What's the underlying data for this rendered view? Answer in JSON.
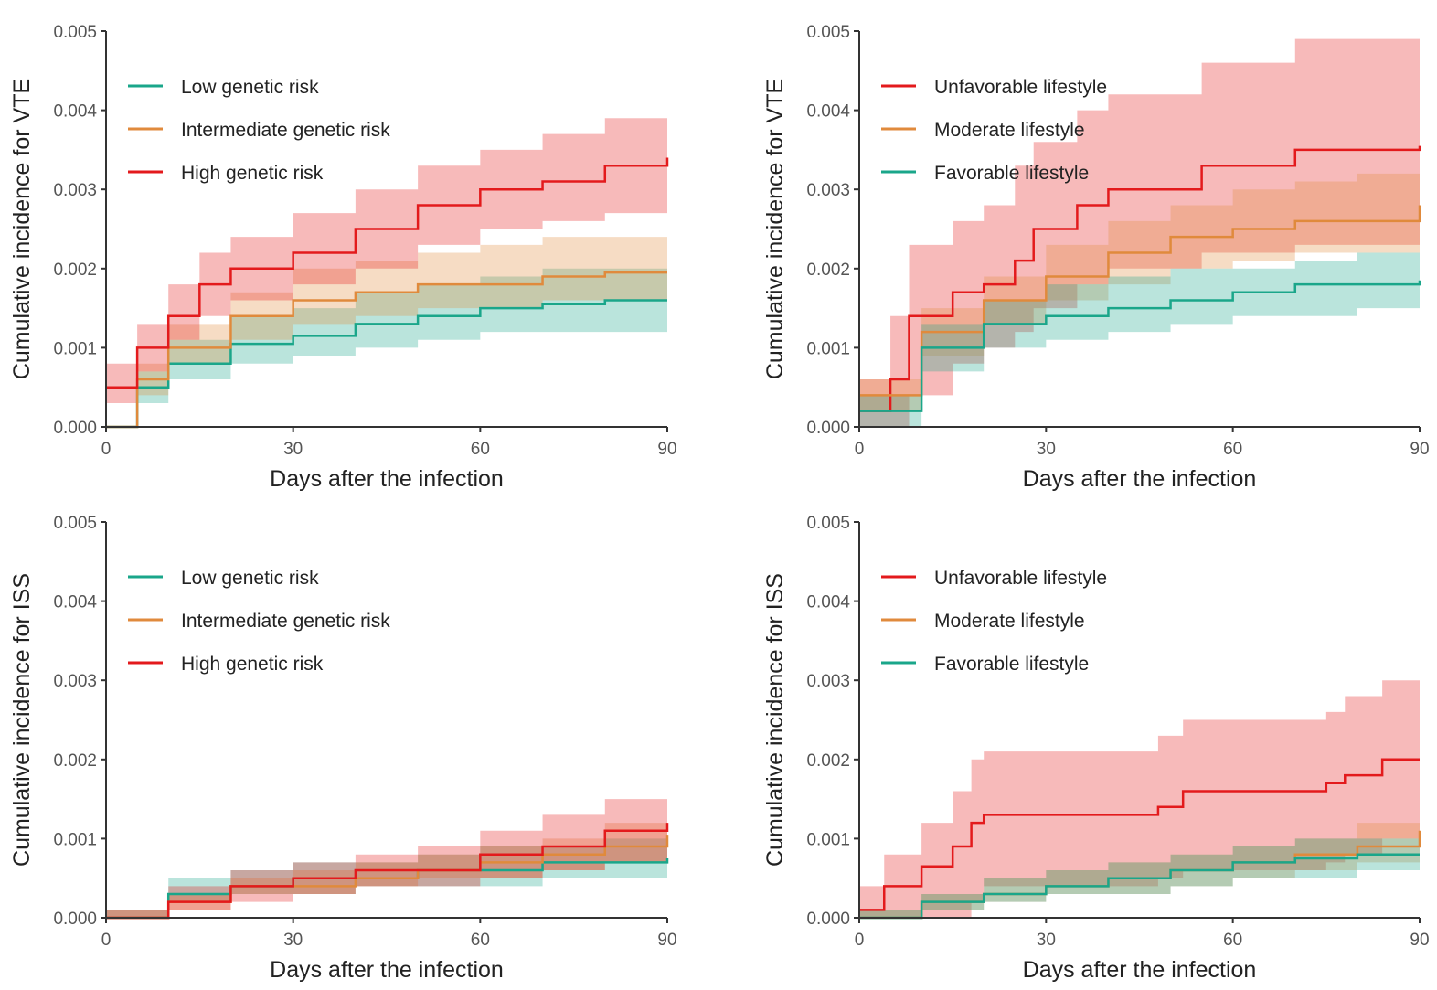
{
  "chart_data": [
    {
      "type": "line",
      "xlabel": "Days after the infection",
      "ylabel": "Cumulative incidence for VTE",
      "xlim": [
        0,
        90
      ],
      "ylim": [
        0,
        0.005
      ],
      "xticks": [
        "0",
        "30",
        "60",
        "90"
      ],
      "yticks": [
        "0.000",
        "0.001",
        "0.002",
        "0.003",
        "0.004",
        "0.005"
      ],
      "legend_position": "top-left",
      "grid": false,
      "series": [
        {
          "name": "Low genetic risk",
          "color": "#1aa68a",
          "points": [
            [
              0,
              0,
              0,
              0
            ],
            [
              5,
              0.0005,
              0.0003,
              0.0007
            ],
            [
              10,
              0.0008,
              0.0006,
              0.0011
            ],
            [
              20,
              0.00105,
              0.0008,
              0.0014
            ],
            [
              30,
              0.00115,
              0.0009,
              0.0015
            ],
            [
              40,
              0.0013,
              0.001,
              0.0017
            ],
            [
              50,
              0.0014,
              0.0011,
              0.0018
            ],
            [
              60,
              0.0015,
              0.0012,
              0.0019
            ],
            [
              70,
              0.00155,
              0.0012,
              0.002
            ],
            [
              80,
              0.0016,
              0.0012,
              0.002
            ],
            [
              90,
              0.0016,
              0.0012,
              0.002
            ]
          ]
        },
        {
          "name": "Intermediate genetic risk",
          "color": "#e08a3c",
          "points": [
            [
              0,
              0,
              0,
              0
            ],
            [
              5,
              0.0006,
              0.0004,
              0.0008
            ],
            [
              10,
              0.001,
              0.0008,
              0.0013
            ],
            [
              20,
              0.0014,
              0.0011,
              0.0017
            ],
            [
              30,
              0.0016,
              0.0013,
              0.002
            ],
            [
              40,
              0.0017,
              0.0014,
              0.0021
            ],
            [
              50,
              0.0018,
              0.0015,
              0.0022
            ],
            [
              60,
              0.0018,
              0.0015,
              0.0023
            ],
            [
              70,
              0.0019,
              0.0016,
              0.0024
            ],
            [
              80,
              0.00195,
              0.0016,
              0.0024
            ],
            [
              90,
              0.00195,
              0.0016,
              0.0024
            ]
          ]
        },
        {
          "name": "High genetic risk",
          "color": "#e31a1c",
          "points": [
            [
              0,
              0.0005,
              0.0003,
              0.0008
            ],
            [
              5,
              0.001,
              0.0007,
              0.0013
            ],
            [
              10,
              0.0014,
              0.0011,
              0.0018
            ],
            [
              15,
              0.0018,
              0.0014,
              0.0022
            ],
            [
              20,
              0.002,
              0.0016,
              0.0024
            ],
            [
              30,
              0.0022,
              0.0018,
              0.0027
            ],
            [
              40,
              0.0025,
              0.002,
              0.003
            ],
            [
              50,
              0.0028,
              0.0023,
              0.0033
            ],
            [
              60,
              0.003,
              0.0025,
              0.0035
            ],
            [
              70,
              0.0031,
              0.0026,
              0.0037
            ],
            [
              80,
              0.0033,
              0.0027,
              0.0039
            ],
            [
              90,
              0.0034,
              0.0028,
              0.004
            ]
          ]
        }
      ]
    },
    {
      "type": "line",
      "xlabel": "Days after the infection",
      "ylabel": "Cumulative incidence for VTE",
      "xlim": [
        0,
        90
      ],
      "ylim": [
        0,
        0.005
      ],
      "xticks": [
        "0",
        "30",
        "60",
        "90"
      ],
      "yticks": [
        "0.000",
        "0.001",
        "0.002",
        "0.003",
        "0.004",
        "0.005"
      ],
      "legend_position": "top-left",
      "grid": false,
      "series": [
        {
          "name": "Unfavorable lifestyle",
          "color": "#e31a1c",
          "points": [
            [
              0,
              0.0002,
              0,
              0.0006
            ],
            [
              5,
              0.0006,
              0,
              0.0014
            ],
            [
              8,
              0.0014,
              0.0004,
              0.0023
            ],
            [
              15,
              0.0017,
              0.0008,
              0.0026
            ],
            [
              20,
              0.0018,
              0.001,
              0.0028
            ],
            [
              25,
              0.0021,
              0.0012,
              0.0033
            ],
            [
              28,
              0.0025,
              0.0015,
              0.0036
            ],
            [
              35,
              0.0028,
              0.0018,
              0.004
            ],
            [
              40,
              0.003,
              0.002,
              0.0042
            ],
            [
              55,
              0.0033,
              0.0022,
              0.0046
            ],
            [
              70,
              0.0035,
              0.0023,
              0.0049
            ],
            [
              90,
              0.00355,
              0.0024,
              0.0049
            ]
          ]
        },
        {
          "name": "Moderate lifestyle",
          "color": "#e08a3c",
          "points": [
            [
              0,
              0.0004,
              0.0002,
              0.0006
            ],
            [
              10,
              0.0012,
              0.0009,
              0.0015
            ],
            [
              20,
              0.0016,
              0.0013,
              0.0019
            ],
            [
              30,
              0.0019,
              0.0016,
              0.0023
            ],
            [
              40,
              0.0022,
              0.0018,
              0.0026
            ],
            [
              50,
              0.0024,
              0.002,
              0.0028
            ],
            [
              60,
              0.0025,
              0.0021,
              0.003
            ],
            [
              70,
              0.0026,
              0.0022,
              0.0031
            ],
            [
              80,
              0.0026,
              0.0022,
              0.0032
            ],
            [
              90,
              0.0028,
              0.0023,
              0.0033
            ]
          ]
        },
        {
          "name": "Favorable lifestyle",
          "color": "#1aa68a",
          "points": [
            [
              0,
              0.0002,
              0,
              0.0004
            ],
            [
              10,
              0.001,
              0.0007,
              0.0013
            ],
            [
              20,
              0.0013,
              0.001,
              0.0016
            ],
            [
              30,
              0.0014,
              0.0011,
              0.0018
            ],
            [
              40,
              0.0015,
              0.0012,
              0.0019
            ],
            [
              50,
              0.0016,
              0.0013,
              0.002
            ],
            [
              60,
              0.0017,
              0.0014,
              0.002
            ],
            [
              70,
              0.0018,
              0.0014,
              0.0021
            ],
            [
              80,
              0.0018,
              0.0015,
              0.0022
            ],
            [
              90,
              0.00185,
              0.0015,
              0.0022
            ]
          ]
        }
      ]
    },
    {
      "type": "line",
      "xlabel": "Days after the infection",
      "ylabel": "Cumulative incidence for ISS",
      "xlim": [
        0,
        90
      ],
      "ylim": [
        0,
        0.005
      ],
      "xticks": [
        "0",
        "30",
        "60",
        "90"
      ],
      "yticks": [
        "0.000",
        "0.001",
        "0.002",
        "0.003",
        "0.004",
        "0.005"
      ],
      "legend_position": "top-left",
      "grid": false,
      "series": [
        {
          "name": "Low genetic risk",
          "color": "#1aa68a",
          "points": [
            [
              0,
              0,
              0,
              0.0001
            ],
            [
              10,
              0.0003,
              0.0002,
              0.0005
            ],
            [
              20,
              0.0004,
              0.0003,
              0.0006
            ],
            [
              30,
              0.0005,
              0.0003,
              0.0007
            ],
            [
              40,
              0.0005,
              0.0004,
              0.0007
            ],
            [
              50,
              0.0006,
              0.0004,
              0.0008
            ],
            [
              60,
              0.0006,
              0.0004,
              0.0009
            ],
            [
              70,
              0.0007,
              0.0005,
              0.0009
            ],
            [
              80,
              0.0007,
              0.0005,
              0.001
            ],
            [
              90,
              0.00075,
              0.0005,
              0.001
            ]
          ]
        },
        {
          "name": "Intermediate genetic risk",
          "color": "#e08a3c",
          "points": [
            [
              0,
              0,
              0,
              0.0001
            ],
            [
              10,
              0.0002,
              0.0001,
              0.0003
            ],
            [
              20,
              0.0004,
              0.0003,
              0.0005
            ],
            [
              30,
              0.0004,
              0.0003,
              0.0006
            ],
            [
              40,
              0.0005,
              0.0004,
              0.0007
            ],
            [
              50,
              0.0006,
              0.0005,
              0.0008
            ],
            [
              60,
              0.0007,
              0.0005,
              0.0009
            ],
            [
              70,
              0.0008,
              0.0006,
              0.001
            ],
            [
              80,
              0.0009,
              0.0007,
              0.0012
            ],
            [
              90,
              0.00105,
              0.0008,
              0.0013
            ]
          ]
        },
        {
          "name": "High genetic risk",
          "color": "#e31a1c",
          "points": [
            [
              0,
              0,
              0,
              0.0001
            ],
            [
              10,
              0.0002,
              0.0001,
              0.0004
            ],
            [
              20,
              0.0004,
              0.0002,
              0.0006
            ],
            [
              30,
              0.0005,
              0.0003,
              0.0007
            ],
            [
              40,
              0.0006,
              0.0004,
              0.0008
            ],
            [
              50,
              0.0006,
              0.0004,
              0.0009
            ],
            [
              60,
              0.0008,
              0.0005,
              0.0011
            ],
            [
              70,
              0.0009,
              0.0006,
              0.0013
            ],
            [
              80,
              0.0011,
              0.0007,
              0.0015
            ],
            [
              90,
              0.0012,
              0.0009,
              0.0016
            ]
          ]
        }
      ]
    },
    {
      "type": "line",
      "xlabel": "Days after the infection",
      "ylabel": "Cumulative incidence for ISS",
      "xlim": [
        0,
        90
      ],
      "ylim": [
        0,
        0.005
      ],
      "xticks": [
        "0",
        "30",
        "60",
        "90"
      ],
      "yticks": [
        "0.000",
        "0.001",
        "0.002",
        "0.003",
        "0.004",
        "0.005"
      ],
      "legend_position": "top-left",
      "grid": false,
      "series": [
        {
          "name": "Unfavorable lifestyle",
          "color": "#e31a1c",
          "points": [
            [
              0,
              0.0001,
              0,
              0.0004
            ],
            [
              4,
              0.0004,
              0,
              0.0008
            ],
            [
              10,
              0.00065,
              0,
              0.0012
            ],
            [
              15,
              0.0009,
              0,
              0.0016
            ],
            [
              18,
              0.0012,
              0.0002,
              0.002
            ],
            [
              20,
              0.0013,
              0.0004,
              0.0021
            ],
            [
              48,
              0.0014,
              0.0005,
              0.0023
            ],
            [
              52,
              0.0016,
              0.0006,
              0.0025
            ],
            [
              75,
              0.0017,
              0.0007,
              0.0026
            ],
            [
              78,
              0.0018,
              0.0008,
              0.0028
            ],
            [
              84,
              0.002,
              0.001,
              0.003
            ],
            [
              90,
              0.002,
              0.001,
              0.003
            ]
          ]
        },
        {
          "name": "Moderate lifestyle",
          "color": "#e08a3c",
          "points": [
            [
              0,
              0,
              0,
              0.0001
            ],
            [
              10,
              0.0002,
              0.0001,
              0.0003
            ],
            [
              20,
              0.0003,
              0.0002,
              0.0005
            ],
            [
              30,
              0.0004,
              0.0003,
              0.0006
            ],
            [
              40,
              0.0005,
              0.0003,
              0.0007
            ],
            [
              50,
              0.0006,
              0.0004,
              0.0008
            ],
            [
              60,
              0.0007,
              0.0005,
              0.0009
            ],
            [
              70,
              0.0008,
              0.0006,
              0.001
            ],
            [
              80,
              0.0009,
              0.0007,
              0.0012
            ],
            [
              90,
              0.0011,
              0.0008,
              0.0014
            ]
          ]
        },
        {
          "name": "Favorable lifestyle",
          "color": "#1aa68a",
          "points": [
            [
              0,
              0,
              0,
              0.0001
            ],
            [
              10,
              0.0002,
              0.0001,
              0.0003
            ],
            [
              20,
              0.0003,
              0.0002,
              0.0005
            ],
            [
              30,
              0.0004,
              0.0003,
              0.0006
            ],
            [
              40,
              0.0005,
              0.0003,
              0.0007
            ],
            [
              50,
              0.0006,
              0.0004,
              0.0008
            ],
            [
              60,
              0.0007,
              0.0005,
              0.0009
            ],
            [
              70,
              0.00075,
              0.0005,
              0.001
            ],
            [
              80,
              0.0008,
              0.0006,
              0.001
            ],
            [
              90,
              0.0008,
              0.0006,
              0.0011
            ]
          ]
        }
      ]
    }
  ]
}
